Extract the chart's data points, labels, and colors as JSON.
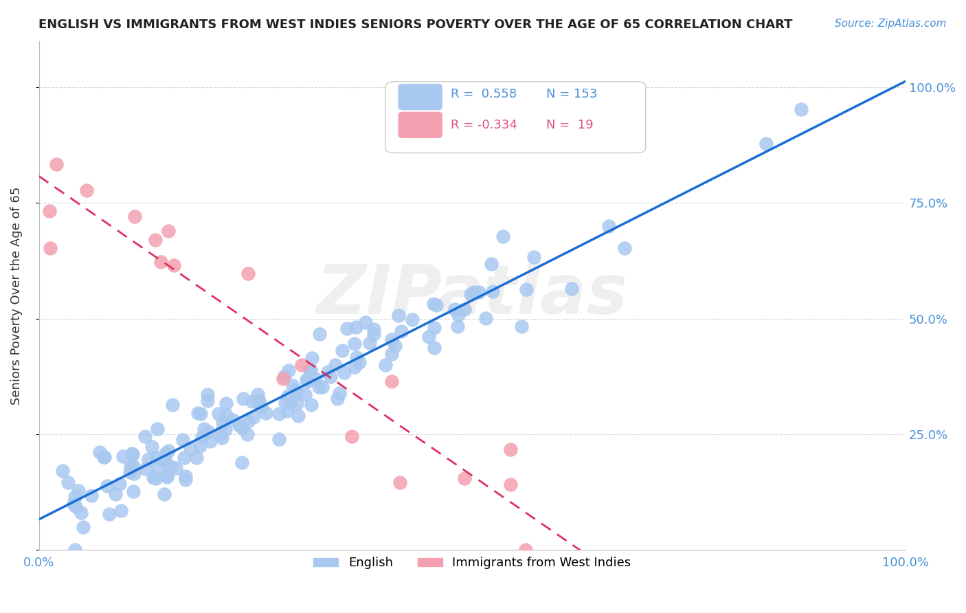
{
  "title": "ENGLISH VS IMMIGRANTS FROM WEST INDIES SENIORS POVERTY OVER THE AGE OF 65 CORRELATION CHART",
  "source_text": "Source: ZipAtlas.com",
  "ylabel": "Seniors Poverty Over the Age of 65",
  "watermark": "ZIPatlas",
  "english_R": 0.558,
  "english_N": 153,
  "westindies_R": -0.334,
  "westindies_N": 19,
  "english_color": "#a8c8f0",
  "westindies_color": "#f4a0b0",
  "regression_english_color": "#1a6fd4",
  "regression_westindies_color": "#e03060",
  "xlim": [
    0.0,
    1.0
  ],
  "ylim": [
    0.0,
    1.1
  ],
  "yticks": [
    0.0,
    0.25,
    0.5,
    0.75,
    1.0
  ],
  "ytick_labels": [
    "",
    "25.0%",
    "50.0%",
    "75.0%",
    "100.0%"
  ],
  "xtick_labels": [
    "0.0%",
    "100.0%"
  ],
  "background_color": "#ffffff",
  "english_scatter_seed": 42,
  "westindies_scatter_seed": 7,
  "legend_R_color_english": "#4a90d9",
  "legend_R_color_westindies": "#e05080"
}
